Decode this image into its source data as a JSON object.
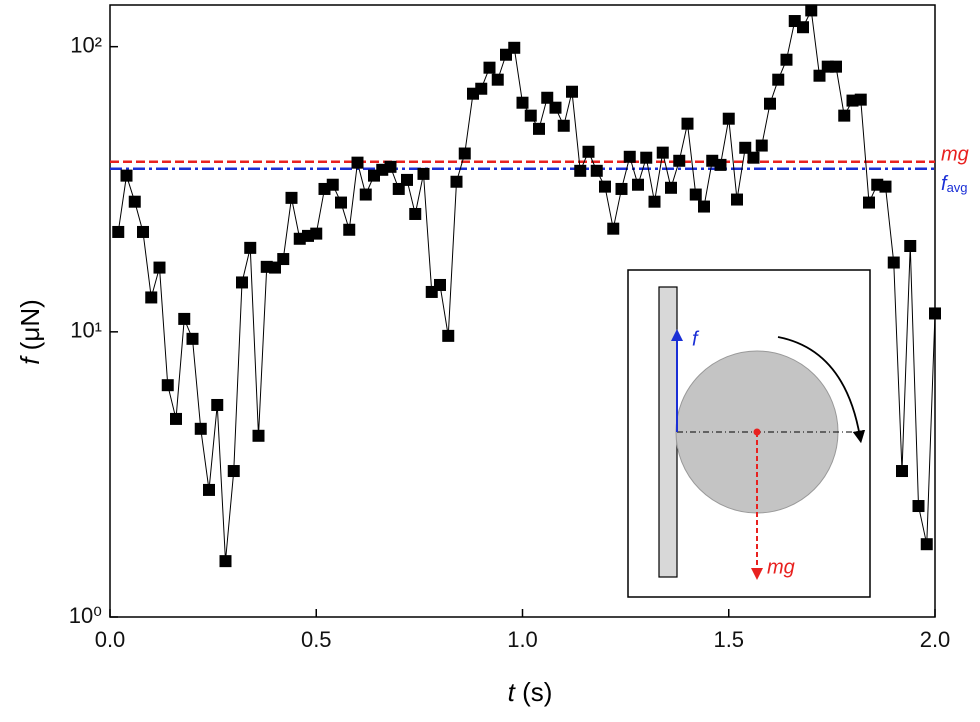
{
  "chart_data": {
    "type": "line",
    "ylabel": {
      "symbol": "f",
      "unit": "(μN)"
    },
    "xlabel": {
      "symbol": "t",
      "unit": "(s)"
    },
    "yscale": "log",
    "xlim": [
      0,
      2
    ],
    "ylim": [
      1,
      140
    ],
    "xticks": [
      {
        "value": 0,
        "label": "0.0"
      },
      0.5,
      {
        "value": 1,
        "label": "1.0"
      },
      1.5,
      {
        "value": 2,
        "label": "2.0"
      }
    ],
    "yticks": [
      {
        "value": 1,
        "label": "10⁰"
      },
      {
        "value": 10,
        "label": "10¹"
      },
      {
        "value": 100,
        "label": "10²"
      }
    ],
    "x": [
      0.02,
      0.04,
      0.06,
      0.08,
      0.1,
      0.12,
      0.14,
      0.16,
      0.18,
      0.2,
      0.22,
      0.24,
      0.26,
      0.28,
      0.3,
      0.32,
      0.34,
      0.36,
      0.38,
      0.4,
      0.42,
      0.44,
      0.46,
      0.48,
      0.5,
      0.52,
      0.54,
      0.56,
      0.58,
      0.6,
      0.62,
      0.64,
      0.66,
      0.68,
      0.7,
      0.72,
      0.74,
      0.76,
      0.78,
      0.8,
      0.82,
      0.84,
      0.86,
      0.88,
      0.9,
      0.92,
      0.94,
      0.96,
      0.98,
      1.0,
      1.02,
      1.04,
      1.06,
      1.08,
      1.1,
      1.12,
      1.14,
      1.16,
      1.18,
      1.2,
      1.22,
      1.24,
      1.26,
      1.28,
      1.3,
      1.32,
      1.34,
      1.36,
      1.38,
      1.4,
      1.42,
      1.44,
      1.46,
      1.48,
      1.5,
      1.52,
      1.54,
      1.56,
      1.58,
      1.6,
      1.62,
      1.64,
      1.66,
      1.68,
      1.7,
      1.72,
      1.74,
      1.76,
      1.78,
      1.8,
      1.82,
      1.84,
      1.86,
      1.88,
      1.9,
      1.92,
      1.94,
      1.96,
      1.98,
      2.0
    ],
    "series": [
      {
        "color": "#000000",
        "values": [
          22.4,
          35.3,
          28.6,
          22.4,
          13.2,
          16.8,
          6.5,
          4.95,
          11.1,
          9.45,
          4.57,
          2.79,
          5.54,
          1.57,
          3.25,
          14.9,
          19.7,
          4.32,
          16.9,
          16.8,
          18.0,
          29.5,
          21.2,
          21.7,
          22.1,
          31.7,
          32.8,
          28.4,
          22.8,
          39.2,
          30.3,
          35.3,
          37.0,
          37.9,
          31.7,
          34.1,
          25.9,
          35.8,
          13.8,
          14.6,
          9.68,
          33.6,
          42.2,
          68.4,
          71.2,
          84.4,
          76.6,
          93.7,
          99.1,
          63.6,
          57.3,
          51.5,
          66.2,
          61.1,
          52.8,
          69.5,
          36.7,
          42.8,
          36.7,
          32.3,
          23.0,
          31.7,
          41.1,
          32.8,
          40.8,
          28.6,
          42.5,
          32.0,
          39.8,
          53.7,
          30.3,
          27.5,
          39.8,
          38.5,
          55.9,
          29.1,
          44.2,
          40.8,
          45.0,
          63.1,
          76.6,
          90.0,
          123,
          117,
          134,
          79.1,
          85.1,
          85.1,
          57.3,
          64.7,
          65.2,
          28.4,
          32.8,
          32.3,
          17.5,
          3.25,
          20.0,
          2.45,
          1.8,
          11.6
        ]
      }
    ],
    "reference_lines": [
      {
        "label": "mg",
        "value": 39.5,
        "color": "#e8211f",
        "style": "dash"
      },
      {
        "label": "f",
        "label_sub": "avg",
        "value": 37.3,
        "color": "#1a2fd6",
        "style": "dashdot"
      }
    ],
    "inset": {
      "force_label": "f",
      "weight_label": "mg"
    }
  }
}
